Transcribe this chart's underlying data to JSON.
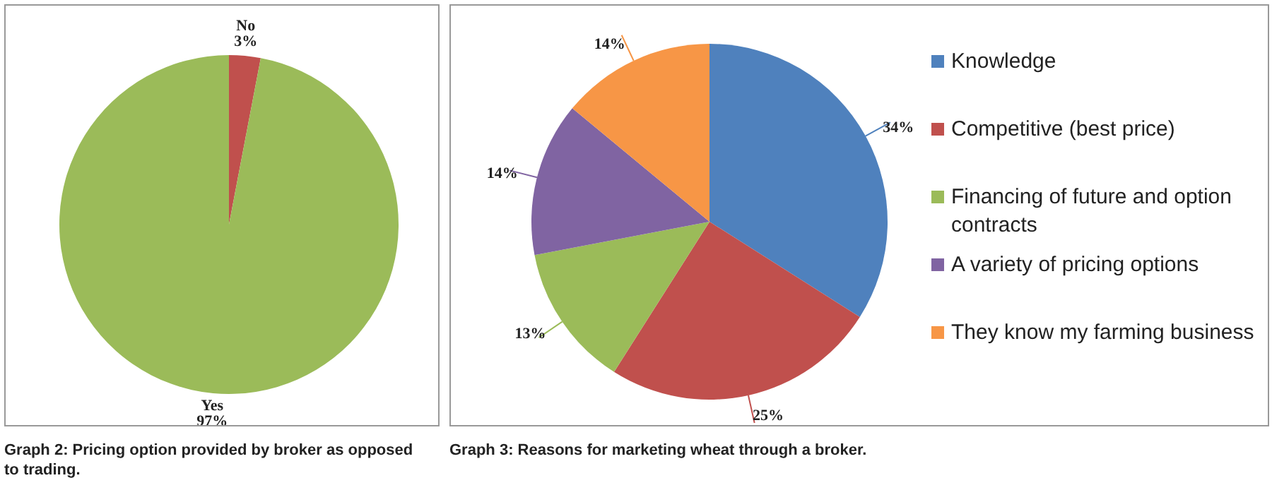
{
  "chart_data": [
    {
      "type": "pie",
      "title": "Graph 2: Pricing option provided by broker as opposed to trading.",
      "categories": [
        "No",
        "Yes"
      ],
      "values": [
        3,
        97
      ],
      "colors": [
        "#c0504d",
        "#9bbb59"
      ],
      "value_labels": [
        "3%",
        "97%"
      ],
      "legend": false
    },
    {
      "type": "pie",
      "title": "Graph 3: Reasons for marketing wheat through a broker.",
      "categories": [
        "Knowledge",
        "Competitive (best price)",
        "Financing of future and option contracts",
        "A variety of pricing options",
        "They know my farming business"
      ],
      "values": [
        34,
        25,
        13,
        14,
        14
      ],
      "colors": [
        "#4f81bd",
        "#c0504d",
        "#9bbb59",
        "#8064a2",
        "#f79646"
      ],
      "value_labels": [
        "34%",
        "25%",
        "13%",
        "14%",
        "14%"
      ],
      "legend": "right"
    }
  ]
}
